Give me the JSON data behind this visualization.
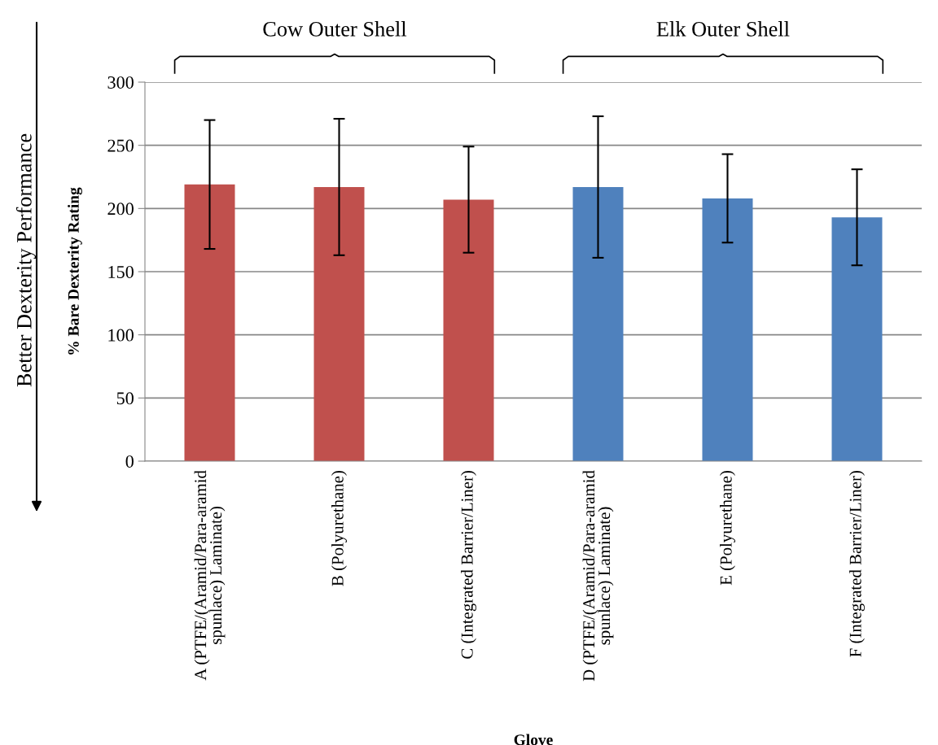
{
  "chart_data": {
    "type": "bar",
    "categories": [
      "A (PTFE/(Aramid/Para-aramid\nspunlace) Laminate)",
      "B (Polyurethane)",
      "C (Integrated Barrier/Liner)",
      "D (PTFE/(Aramid/Para-aramid\nspunlace) Laminate)",
      "E (Polyurethane)",
      "F (Integrated Barrier/Liner)"
    ],
    "values": [
      219,
      217,
      207,
      217,
      208,
      193
    ],
    "errors": [
      51,
      54,
      42,
      56,
      35,
      38
    ],
    "colors": [
      "#c0504d",
      "#c0504d",
      "#c0504d",
      "#4f81bd",
      "#4f81bd",
      "#4f81bd"
    ],
    "xlabel": "Glove",
    "ylabel": "% Bare Dexterity Rating",
    "ylim": [
      0,
      300
    ],
    "yticks": [
      0,
      50,
      100,
      150,
      200,
      250,
      300
    ],
    "grid": "y",
    "legend": false,
    "annotations": [
      "Cow Outer Shell",
      "Elk Outer Shell",
      "Better Dexterity Performance"
    ]
  }
}
